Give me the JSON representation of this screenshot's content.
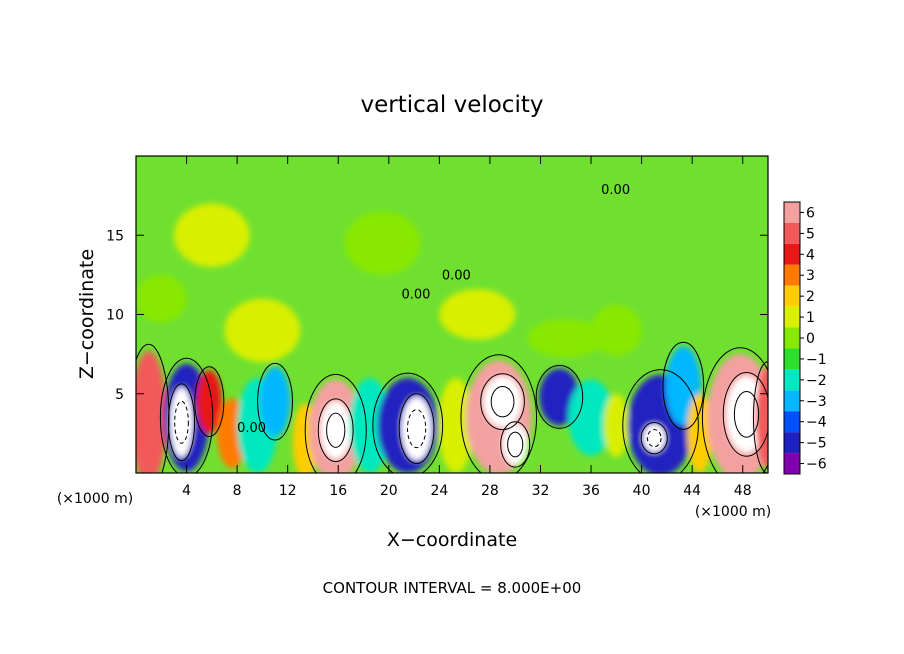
{
  "chart_data": {
    "type": "heatmap",
    "title": "vertical velocity",
    "xlabel": "X−coordinate",
    "ylabel": "Z−coordinate",
    "x_unit_left": "(×1000 m)",
    "x_unit_right": "(×1000 m)",
    "xlim": [
      0,
      50
    ],
    "ylim": [
      0,
      20
    ],
    "x_ticks": [
      4,
      8,
      12,
      16,
      20,
      24,
      28,
      32,
      36,
      40,
      44,
      48
    ],
    "x_tick_labels": [
      "4",
      "8",
      "12",
      "16",
      "20",
      "24",
      "28",
      "32",
      "36",
      "40",
      "44",
      "48"
    ],
    "y_ticks": [
      5,
      10,
      15
    ],
    "y_tick_labels": [
      "5",
      "10",
      "15"
    ],
    "colorbar": {
      "levels": [
        6,
        5,
        4,
        3,
        2,
        1,
        0,
        -1,
        -2,
        -3,
        -4,
        -5,
        -6
      ],
      "labels": [
        "6",
        "5",
        "4",
        "3",
        "2",
        "1",
        "0",
        "−1",
        "−2",
        "−3",
        "−4",
        "−5",
        "−6"
      ],
      "colors": [
        "#f4a0a0",
        "#f25a5a",
        "#e81818",
        "#ff7a00",
        "#ffcc00",
        "#d8ef00",
        "#88e800",
        "#2ee02e",
        "#00e8c0",
        "#00b8ff",
        "#0050ff",
        "#2020c0",
        "#8000b0"
      ]
    },
    "contour_labels": [
      {
        "text": "0.00",
        "x": 24.2,
        "y": 12.2
      },
      {
        "text": "0.00",
        "x": 21.0,
        "y": 11.0
      },
      {
        "text": "0.00",
        "x": 36.8,
        "y": 17.6
      },
      {
        "text": "0.00",
        "x": 8.0,
        "y": 2.6
      }
    ],
    "cells": [
      {
        "x": 1.0,
        "y": 3.5,
        "v": 4.5,
        "rx": 1.4,
        "ry": 4.2
      },
      {
        "x": 4.0,
        "y": 3.5,
        "v": -5.5,
        "rx": 1.8,
        "ry": 3.4
      },
      {
        "x": 3.6,
        "y": 3.2,
        "v": -8,
        "rx": 0.9,
        "ry": 2.2
      },
      {
        "x": 5.8,
        "y": 4.5,
        "v": 3.5,
        "rx": 1.0,
        "ry": 2.0
      },
      {
        "x": 7.6,
        "y": 2.5,
        "v": 2.5,
        "rx": 1.2,
        "ry": 2.2
      },
      {
        "x": 9.6,
        "y": 3.0,
        "v": -2.5,
        "rx": 1.6,
        "ry": 3.0
      },
      {
        "x": 11.0,
        "y": 4.5,
        "v": -3,
        "rx": 1.2,
        "ry": 2.2
      },
      {
        "x": 13.4,
        "y": 2.0,
        "v": 1.5,
        "rx": 1.0,
        "ry": 2.4
      },
      {
        "x": 15.8,
        "y": 2.7,
        "v": 6,
        "rx": 2.1,
        "ry": 3.2
      },
      {
        "x": 15.8,
        "y": 2.7,
        "v": 9,
        "rx": 1.2,
        "ry": 1.8
      },
      {
        "x": 18.5,
        "y": 3.0,
        "v": -2.5,
        "rx": 1.6,
        "ry": 3.0
      },
      {
        "x": 21.5,
        "y": 3.0,
        "v": -5.5,
        "rx": 2.4,
        "ry": 3.0
      },
      {
        "x": 22.2,
        "y": 2.8,
        "v": -8,
        "rx": 1.2,
        "ry": 2.0
      },
      {
        "x": 25.3,
        "y": 3.0,
        "v": 1.2,
        "rx": 1.4,
        "ry": 3.0
      },
      {
        "x": 28.7,
        "y": 3.5,
        "v": 5.5,
        "rx": 2.6,
        "ry": 3.6
      },
      {
        "x": 29.0,
        "y": 4.5,
        "v": 8.5,
        "rx": 1.5,
        "ry": 1.6
      },
      {
        "x": 30.0,
        "y": 1.8,
        "v": 8,
        "rx": 1.0,
        "ry": 1.3
      },
      {
        "x": 33.5,
        "y": 4.8,
        "v": -5,
        "rx": 1.6,
        "ry": 1.8
      },
      {
        "x": 36.0,
        "y": 3.5,
        "v": -2.5,
        "rx": 1.8,
        "ry": 2.4
      },
      {
        "x": 38.0,
        "y": 3.0,
        "v": 1.0,
        "rx": 1.0,
        "ry": 2.0
      },
      {
        "x": 41.5,
        "y": 3.0,
        "v": -5.5,
        "rx": 2.6,
        "ry": 3.2
      },
      {
        "x": 41.0,
        "y": 2.2,
        "v": -9,
        "rx": 0.9,
        "ry": 0.9
      },
      {
        "x": 43.3,
        "y": 5.5,
        "v": -3,
        "rx": 1.4,
        "ry": 2.5
      },
      {
        "x": 44.6,
        "y": 2.5,
        "v": 1.5,
        "rx": 1.0,
        "ry": 2.5
      },
      {
        "x": 47.8,
        "y": 3.5,
        "v": 5.5,
        "rx": 2.6,
        "ry": 4.0
      },
      {
        "x": 48.3,
        "y": 3.7,
        "v": 9,
        "rx": 1.6,
        "ry": 2.4
      },
      {
        "x": 50.0,
        "y": 3.5,
        "v": 5,
        "rx": 1.0,
        "ry": 3.2
      },
      {
        "x": 10.0,
        "y": 9.0,
        "v": 0.6,
        "rx": 3.0,
        "ry": 2.0
      },
      {
        "x": 27.0,
        "y": 10.0,
        "v": 0.5,
        "rx": 3.0,
        "ry": 1.6
      },
      {
        "x": 19.5,
        "y": 14.5,
        "v": 0.4,
        "rx": 3.0,
        "ry": 2.0
      },
      {
        "x": 2.0,
        "y": 11.0,
        "v": -0.4,
        "rx": 2.0,
        "ry": 1.5
      },
      {
        "x": 34.0,
        "y": 8.5,
        "v": -0.5,
        "rx": 3.0,
        "ry": 1.2
      },
      {
        "x": 38.0,
        "y": 9.0,
        "v": -0.5,
        "rx": 2.0,
        "ry": 1.6
      },
      {
        "x": 6.0,
        "y": 15.0,
        "v": 0.5,
        "rx": 3.0,
        "ry": 2.0
      }
    ],
    "note": "CONTOUR INTERVAL = 8.000E+00"
  }
}
